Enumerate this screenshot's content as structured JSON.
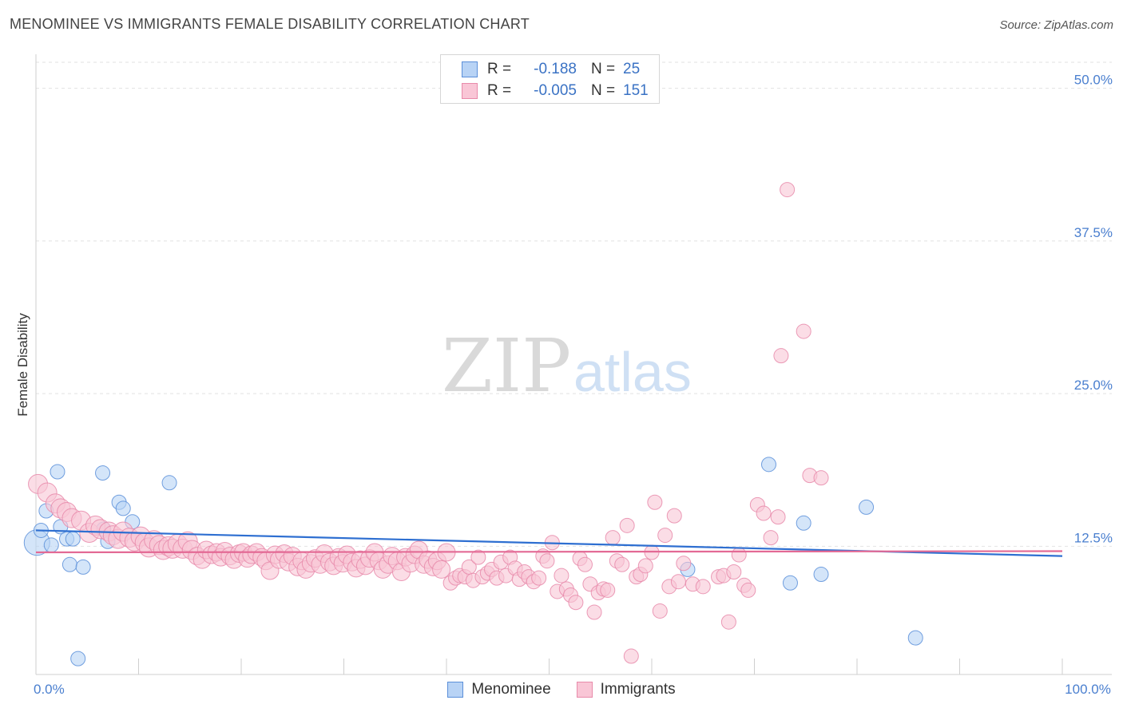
{
  "title": "MENOMINEE VS IMMIGRANTS FEMALE DISABILITY CORRELATION CHART",
  "source": "Source: ZipAtlas.com",
  "watermark": {
    "zip": "ZIP",
    "atlas": "atlas"
  },
  "legend_top": [
    {
      "r_label": "R =",
      "r_value": "-0.188",
      "n_label": "N =",
      "n_value": "25",
      "fill": "#b8d3f5",
      "stroke": "#5b8fd9",
      "value_color": "#3a72c4"
    },
    {
      "r_label": "R =",
      "r_value": "-0.005",
      "n_label": "N =",
      "n_value": "151",
      "fill": "#f9c6d6",
      "stroke": "#e88aaa",
      "value_color": "#3a72c4"
    }
  ],
  "legend_bottom": [
    {
      "label": "Menominee",
      "fill": "#b8d3f5",
      "stroke": "#5b8fd9"
    },
    {
      "label": "Immigrants",
      "fill": "#f9c6d6",
      "stroke": "#e88aaa"
    }
  ],
  "chart_data": {
    "type": "scatter",
    "title": "MENOMINEE VS IMMIGRANTS FEMALE DISABILITY CORRELATION CHART",
    "xlabel": "",
    "ylabel": "Female Disability",
    "xlim": [
      0,
      100
    ],
    "ylim": [
      2,
      52
    ],
    "x_tick_labels": [
      {
        "value": 0,
        "label": "0.0%"
      },
      {
        "value": 100,
        "label": "100.0%"
      }
    ],
    "x_minor_ticks": [
      10,
      20,
      30,
      40,
      50,
      60,
      70,
      80,
      90,
      100
    ],
    "y_ticks": [
      {
        "value": 12.5,
        "label": "12.5%"
      },
      {
        "value": 25,
        "label": "25.0%"
      },
      {
        "value": 37.5,
        "label": "37.5%"
      },
      {
        "value": 50,
        "label": "50.0%"
      }
    ],
    "grid": "horizontal-dashed",
    "legend_position": "bottom",
    "series": [
      {
        "name": "Menominee",
        "color": "#5b8fd9",
        "fill": "#b8d3f5",
        "trend": [
          [
            0,
            13.8
          ],
          [
            100,
            11.7
          ]
        ],
        "points": [
          [
            0.1,
            12.8,
            16
          ],
          [
            0.5,
            13.8,
            9
          ],
          [
            1.0,
            15.4,
            9
          ],
          [
            1.5,
            12.6,
            9
          ],
          [
            2.1,
            18.6,
            9
          ],
          [
            2.4,
            14.1,
            9
          ],
          [
            3.0,
            13.1,
            9
          ],
          [
            3.3,
            11.0,
            9
          ],
          [
            3.6,
            13.1,
            9
          ],
          [
            4.1,
            3.3,
            9
          ],
          [
            4.6,
            10.8,
            9
          ],
          [
            6.5,
            18.5,
            9
          ],
          [
            6.6,
            13.9,
            9
          ],
          [
            7.0,
            12.9,
            9
          ],
          [
            8.1,
            16.1,
            9
          ],
          [
            8.5,
            15.6,
            9
          ],
          [
            9.4,
            14.5,
            9
          ],
          [
            13.0,
            17.7,
            9
          ],
          [
            63.5,
            10.6,
            9
          ],
          [
            71.4,
            19.2,
            9
          ],
          [
            73.5,
            9.5,
            9
          ],
          [
            74.8,
            14.4,
            9
          ],
          [
            76.5,
            10.2,
            9
          ],
          [
            80.9,
            15.7,
            9
          ],
          [
            85.7,
            5.0,
            9
          ]
        ]
      },
      {
        "name": "Immigrants",
        "color": "#e88aaa",
        "fill": "#f9c6d6",
        "trend": [
          [
            0,
            12.0
          ],
          [
            100,
            12.1
          ]
        ],
        "points": [
          [
            0.2,
            17.6,
            12
          ],
          [
            1.1,
            16.9,
            12
          ],
          [
            1.9,
            16.0,
            12
          ],
          [
            2.4,
            15.6,
            12
          ],
          [
            3.0,
            15.3,
            12
          ],
          [
            3.5,
            14.8,
            12
          ],
          [
            4.4,
            14.6,
            12
          ],
          [
            5.2,
            13.6,
            12
          ],
          [
            5.8,
            14.2,
            12
          ],
          [
            6.3,
            13.9,
            12
          ],
          [
            7.1,
            13.7,
            12
          ],
          [
            7.5,
            13.4,
            12
          ],
          [
            8.0,
            13.1,
            12
          ],
          [
            8.5,
            13.7,
            12
          ],
          [
            9.1,
            13.2,
            12
          ],
          [
            9.6,
            12.9,
            12
          ],
          [
            10.2,
            13.3,
            12
          ],
          [
            10.6,
            12.8,
            12
          ],
          [
            11.0,
            12.4,
            12
          ],
          [
            11.5,
            13.0,
            12
          ],
          [
            12.0,
            12.6,
            12
          ],
          [
            12.4,
            12.2,
            12
          ],
          [
            12.9,
            12.5,
            12
          ],
          [
            13.3,
            12.3,
            12
          ],
          [
            13.8,
            12.7,
            12
          ],
          [
            14.3,
            12.3,
            12
          ],
          [
            14.8,
            12.9,
            12
          ],
          [
            15.2,
            12.2,
            12
          ],
          [
            15.7,
            11.7,
            11
          ],
          [
            16.2,
            11.4,
            11
          ],
          [
            16.6,
            12.2,
            11
          ],
          [
            17.1,
            11.8,
            11
          ],
          [
            17.6,
            12.0,
            11
          ],
          [
            18.0,
            11.6,
            11
          ],
          [
            18.4,
            12.1,
            11
          ],
          [
            18.9,
            11.7,
            11
          ],
          [
            19.3,
            11.4,
            11
          ],
          [
            19.8,
            11.9,
            11
          ],
          [
            20.2,
            12.0,
            11
          ],
          [
            20.6,
            11.5,
            11
          ],
          [
            21.0,
            11.8,
            11
          ],
          [
            21.5,
            12.0,
            11
          ],
          [
            22.0,
            11.6,
            11
          ],
          [
            22.4,
            11.3,
            11
          ],
          [
            22.8,
            10.5,
            11
          ],
          [
            23.3,
            11.8,
            11
          ],
          [
            23.7,
            11.4,
            11
          ],
          [
            24.2,
            11.9,
            11
          ],
          [
            24.6,
            11.2,
            11
          ],
          [
            25.0,
            11.7,
            11
          ],
          [
            25.5,
            10.8,
            11
          ],
          [
            25.9,
            11.3,
            11
          ],
          [
            26.3,
            10.6,
            11
          ],
          [
            26.8,
            11.1,
            11
          ],
          [
            27.2,
            11.5,
            11
          ],
          [
            27.7,
            11.0,
            11
          ],
          [
            28.1,
            11.9,
            11
          ],
          [
            28.6,
            11.2,
            11
          ],
          [
            29.0,
            10.9,
            11
          ],
          [
            29.5,
            11.6,
            11
          ],
          [
            29.9,
            11.1,
            11
          ],
          [
            30.3,
            11.8,
            11
          ],
          [
            30.8,
            11.2,
            11
          ],
          [
            31.2,
            10.7,
            11
          ],
          [
            31.6,
            11.4,
            11
          ],
          [
            32.1,
            10.9,
            11
          ],
          [
            32.5,
            11.5,
            11
          ],
          [
            33.0,
            12.0,
            11
          ],
          [
            33.4,
            11.3,
            11
          ],
          [
            33.8,
            10.6,
            11
          ],
          [
            34.3,
            11.0,
            11
          ],
          [
            34.7,
            11.7,
            11
          ],
          [
            35.2,
            11.3,
            11
          ],
          [
            35.6,
            10.4,
            11
          ],
          [
            36.0,
            11.6,
            11
          ],
          [
            36.5,
            11.1,
            11
          ],
          [
            36.9,
            11.8,
            11
          ],
          [
            37.3,
            12.2,
            11
          ],
          [
            37.8,
            11.0,
            11
          ],
          [
            38.2,
            11.4,
            11
          ],
          [
            38.7,
            10.8,
            11
          ],
          [
            39.1,
            11.3,
            11
          ],
          [
            39.5,
            10.6,
            11
          ],
          [
            40.0,
            12.0,
            11
          ],
          [
            40.4,
            9.5,
            9
          ],
          [
            40.9,
            9.9,
            9
          ],
          [
            41.3,
            10.1,
            9
          ],
          [
            41.8,
            10.0,
            9
          ],
          [
            42.2,
            10.8,
            9
          ],
          [
            42.6,
            9.7,
            9
          ],
          [
            43.1,
            11.6,
            9
          ],
          [
            43.5,
            10.0,
            9
          ],
          [
            44.0,
            10.3,
            9
          ],
          [
            44.4,
            10.6,
            9
          ],
          [
            44.9,
            9.9,
            9
          ],
          [
            45.3,
            11.2,
            9
          ],
          [
            45.8,
            10.1,
            9
          ],
          [
            46.2,
            11.6,
            9
          ],
          [
            46.7,
            10.7,
            9
          ],
          [
            47.1,
            9.8,
            9
          ],
          [
            47.6,
            10.4,
            9
          ],
          [
            48.0,
            10.0,
            9
          ],
          [
            48.5,
            9.6,
            9
          ],
          [
            49.0,
            9.9,
            9
          ],
          [
            49.4,
            11.7,
            9
          ],
          [
            49.8,
            11.3,
            9
          ],
          [
            50.3,
            12.8,
            9
          ],
          [
            50.8,
            8.8,
            9
          ],
          [
            51.2,
            10.1,
            9
          ],
          [
            51.7,
            9.0,
            9
          ],
          [
            52.1,
            8.5,
            9
          ],
          [
            52.6,
            7.9,
            9
          ],
          [
            53.0,
            11.5,
            9
          ],
          [
            53.5,
            11.0,
            9
          ],
          [
            54.0,
            9.4,
            9
          ],
          [
            54.4,
            7.1,
            9
          ],
          [
            54.8,
            8.7,
            9
          ],
          [
            55.3,
            9.0,
            9
          ],
          [
            55.7,
            8.9,
            9
          ],
          [
            56.2,
            13.2,
            9
          ],
          [
            56.6,
            11.3,
            9
          ],
          [
            57.1,
            11.0,
            9
          ],
          [
            57.6,
            14.2,
            9
          ],
          [
            58.0,
            3.5,
            9
          ],
          [
            58.5,
            10.0,
            9
          ],
          [
            58.9,
            10.2,
            9
          ],
          [
            59.4,
            10.9,
            9
          ],
          [
            60.0,
            12.0,
            9
          ],
          [
            60.3,
            16.1,
            9
          ],
          [
            60.8,
            7.2,
            9
          ],
          [
            61.3,
            13.4,
            9
          ],
          [
            61.7,
            9.2,
            9
          ],
          [
            62.2,
            15.0,
            9
          ],
          [
            62.6,
            9.6,
            9
          ],
          [
            63.1,
            11.1,
            9
          ],
          [
            64.0,
            9.4,
            9
          ],
          [
            65.0,
            9.2,
            9
          ],
          [
            66.5,
            10.0,
            9
          ],
          [
            67.0,
            10.1,
            9
          ],
          [
            67.5,
            6.3,
            9
          ],
          [
            68.0,
            10.4,
            9
          ],
          [
            68.5,
            11.8,
            9
          ],
          [
            69.0,
            9.3,
            9
          ],
          [
            69.4,
            8.9,
            9
          ],
          [
            70.3,
            15.9,
            9
          ],
          [
            70.9,
            15.2,
            9
          ],
          [
            71.6,
            13.2,
            9
          ],
          [
            72.3,
            14.9,
            9
          ],
          [
            72.6,
            28.1,
            9
          ],
          [
            73.2,
            41.7,
            9
          ],
          [
            74.8,
            30.1,
            9
          ],
          [
            75.4,
            18.3,
            9
          ],
          [
            76.5,
            18.1,
            9
          ]
        ]
      }
    ]
  }
}
